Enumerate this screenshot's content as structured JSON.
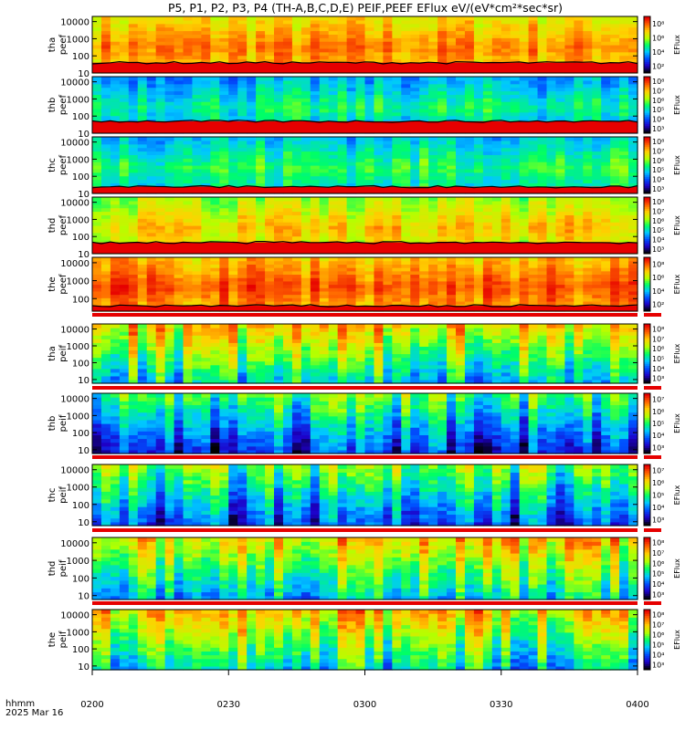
{
  "chart_data": {
    "type": "heatmap",
    "title": "P5, P1, P2, P3, P4 (TH-A,B,C,D,E) PEIF,PEEF EFlux eV/(eV*cm²*sec*sr)",
    "x_axis": {
      "label_line1": "hhmm",
      "label_line2": "2025 Mar 16",
      "ticks": [
        "0200",
        "0230",
        "0300",
        "0330",
        "0400"
      ],
      "range": [
        "02:00",
        "04:00"
      ]
    },
    "colorbar_label": "EFlux",
    "colormap": [
      "#000000",
      "#1e00c8",
      "#0050ff",
      "#00c8ff",
      "#00ff64",
      "#b4ff00",
      "#ffd200",
      "#ff6400",
      "#e60000"
    ],
    "panels": [
      {
        "id": "tha-peef",
        "name": "tha",
        "sub": "peef",
        "ylim": [
          10,
          20000
        ],
        "yticks": [
          "10",
          "100",
          "1000",
          "10000"
        ],
        "cbar": [
          "10²",
          "10⁴",
          "10⁶",
          "10⁸"
        ],
        "base_level": 0.72,
        "cold_band_ev": 40,
        "line": true
      },
      {
        "id": "thb-peef",
        "name": "thb",
        "sub": "peef",
        "ylim": [
          10,
          20000
        ],
        "yticks": [
          "10",
          "100",
          "1000",
          "10000"
        ],
        "cbar": [
          "10³",
          "10⁴",
          "10⁵",
          "10⁶",
          "10⁷",
          "10⁸"
        ],
        "base_level": 0.35,
        "cold_band_ev": 50,
        "line": true
      },
      {
        "id": "thc-peef",
        "name": "thc",
        "sub": "peef",
        "ylim": [
          10,
          20000
        ],
        "yticks": [
          "10",
          "100",
          "1000",
          "10000"
        ],
        "cbar": [
          "10³",
          "10⁴",
          "10⁵",
          "10⁶",
          "10⁷",
          "10⁸"
        ],
        "base_level": 0.4,
        "cold_band_ev": 25,
        "line": true
      },
      {
        "id": "thd-peef",
        "name": "thd",
        "sub": "peef",
        "ylim": [
          10,
          20000
        ],
        "yticks": [
          "10",
          "100",
          "1000",
          "10000"
        ],
        "cbar": [
          "10³",
          "10⁴",
          "10⁵",
          "10⁶",
          "10⁷",
          "10⁸"
        ],
        "base_level": 0.62,
        "cold_band_ev": 45,
        "line": true
      },
      {
        "id": "the-peef",
        "name": "the",
        "sub": "peef",
        "ylim": [
          20,
          20000
        ],
        "yticks": [
          "100",
          "1000",
          "10000"
        ],
        "cbar": [
          "10²",
          "10⁴",
          "10⁶",
          "10⁸"
        ],
        "base_level": 0.78,
        "cold_band_ev": 40,
        "line": true
      },
      {
        "id": "tha-peif",
        "name": "tha",
        "sub": "peif",
        "ylim": [
          6,
          20000
        ],
        "yticks": [
          "10",
          "100",
          "1000",
          "10000"
        ],
        "cbar": [
          "10³",
          "10⁴",
          "10⁵",
          "10⁶",
          "10⁷",
          "10⁸"
        ],
        "base_level": 0.5,
        "cold_band_ev": 0,
        "line": false
      },
      {
        "id": "thb-peif",
        "name": "thb",
        "sub": "peif",
        "ylim": [
          6,
          20000
        ],
        "yticks": [
          "10",
          "100",
          "1000",
          "10000"
        ],
        "cbar": [
          "10³",
          "10⁴",
          "10⁵",
          "10⁶",
          "10⁷"
        ],
        "base_level": 0.28,
        "cold_band_ev": 0,
        "line": false
      },
      {
        "id": "thc-peif",
        "name": "thc",
        "sub": "peif",
        "ylim": [
          6,
          20000
        ],
        "yticks": [
          "10",
          "100",
          "1000",
          "10000"
        ],
        "cbar": [
          "10³",
          "10⁴",
          "10⁵",
          "10⁶",
          "10⁷"
        ],
        "base_level": 0.3,
        "cold_band_ev": 0,
        "line": false
      },
      {
        "id": "thd-peif",
        "name": "thd",
        "sub": "peif",
        "ylim": [
          6,
          20000
        ],
        "yticks": [
          "10",
          "100",
          "1000",
          "10000"
        ],
        "cbar": [
          "10³",
          "10⁴",
          "10⁵",
          "10⁶",
          "10⁷",
          "10⁸"
        ],
        "base_level": 0.48,
        "cold_band_ev": 0,
        "line": false
      },
      {
        "id": "the-peif",
        "name": "the",
        "sub": "peif",
        "ylim": [
          6,
          20000
        ],
        "yticks": [
          "10",
          "100",
          "1000",
          "10000"
        ],
        "cbar": [
          "10³",
          "10⁴",
          "10⁵",
          "10⁶",
          "10⁷",
          "10⁸"
        ],
        "base_level": 0.5,
        "cold_band_ev": 0,
        "line": false
      }
    ]
  }
}
